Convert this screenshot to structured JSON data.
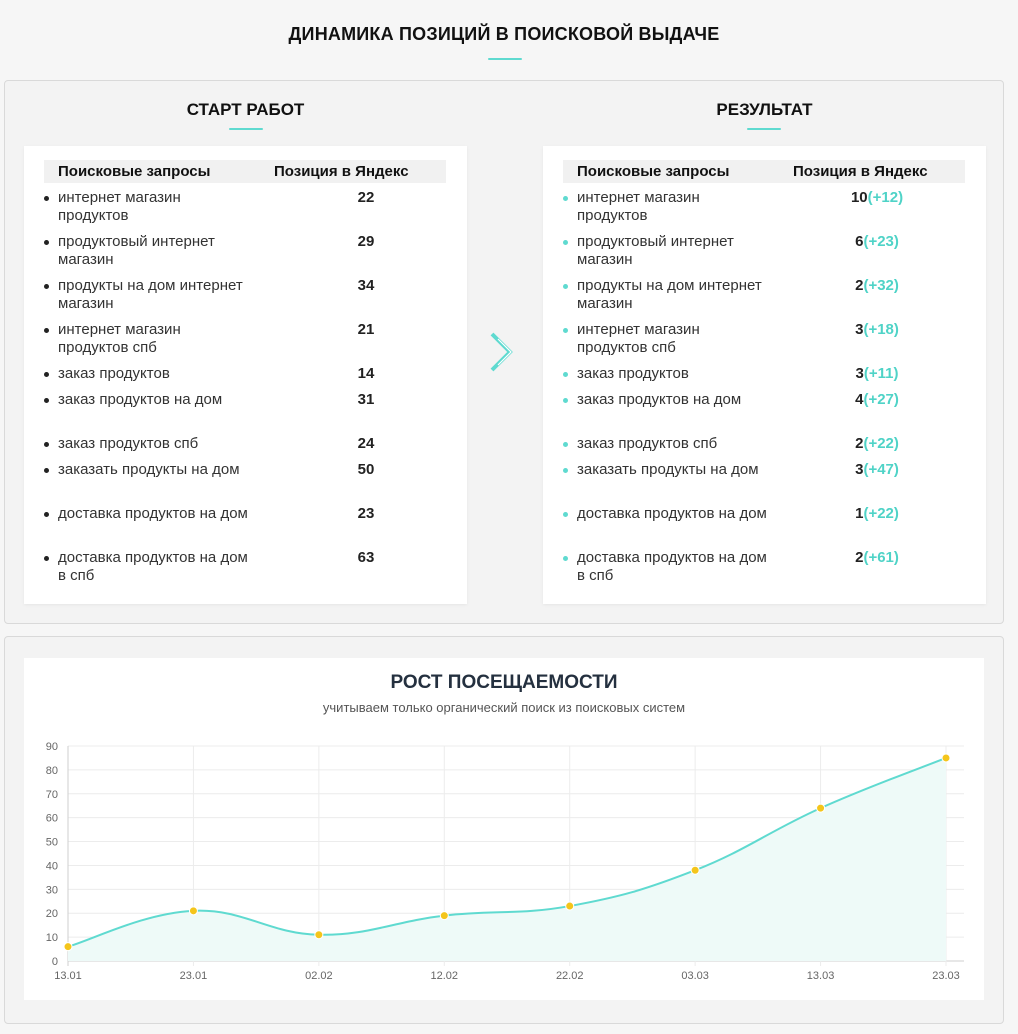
{
  "main_title": "ДИНАМИКА ПОЗИЦИЙ В ПОИСКОВОЙ ВЫДАЧЕ",
  "colors": {
    "accent": "#5fdad0",
    "point": "#f4c51b",
    "fill": "#eefaf8"
  },
  "start": {
    "title": "СТАРТ РАБОТ",
    "col_query": "Поисковые запросы",
    "col_pos": "Позиция в Яндекс",
    "rows": [
      {
        "q": "интернет магазин продуктов",
        "p": "22"
      },
      {
        "q": "продуктовый интернет магазин",
        "p": "29"
      },
      {
        "q": "продукты на дом интернет магазин",
        "p": "34"
      },
      {
        "q": "интернет магазин продуктов спб",
        "p": "21"
      },
      {
        "q": "заказ продуктов",
        "p": "14"
      },
      {
        "q": "заказ продуктов на дом",
        "p": "31"
      },
      {
        "q": "заказ продуктов спб",
        "p": "24"
      },
      {
        "q": "заказать продукты на дом",
        "p": "50"
      },
      {
        "q": "доставка продуктов на дом",
        "p": "23"
      },
      {
        "q": "доставка продуктов на дом в спб",
        "p": "63"
      }
    ]
  },
  "result": {
    "title": "РЕЗУЛЬТАТ",
    "col_query": "Поисковые запросы",
    "col_pos": "Позиция в Яндекс",
    "rows": [
      {
        "q": "интернет магазин продуктов",
        "p": "10",
        "d": "(+12)"
      },
      {
        "q": "продуктовый интернет магазин",
        "p": "6",
        "d": "(+23)"
      },
      {
        "q": "продукты на дом интернет магазин",
        "p": "2",
        "d": "(+32)"
      },
      {
        "q": "интернет магазин продуктов спб",
        "p": "3",
        "d": "(+18)"
      },
      {
        "q": "заказ продуктов",
        "p": "3",
        "d": "(+11)"
      },
      {
        "q": "заказ продуктов на дом",
        "p": "4",
        "d": "(+27)"
      },
      {
        "q": "заказ продуктов спб",
        "p": "2",
        "d": "(+22)"
      },
      {
        "q": "заказать продукты на дом",
        "p": "3",
        "d": "(+47)"
      },
      {
        "q": "доставка продуктов на дом",
        "p": "1",
        "d": "(+22)"
      },
      {
        "q": "доставка продуктов на дом в спб",
        "p": "2",
        "d": "(+61)"
      }
    ]
  },
  "arrow_icon": "chevron-right-icon",
  "chart_data": {
    "type": "area",
    "title": "РОСТ ПОСЕЩАЕМОСТИ",
    "subtitle": "учитываем только органический поиск из поисковых систем",
    "xlabel": "",
    "ylabel": "",
    "categories": [
      "13.01",
      "23.01",
      "02.02",
      "12.02",
      "22.02",
      "03.03",
      "13.03",
      "23.03"
    ],
    "values": [
      6,
      21,
      11,
      19,
      23,
      38,
      64,
      85
    ],
    "ylim": [
      0,
      90
    ],
    "yticks": [
      0,
      10,
      20,
      30,
      40,
      50,
      60,
      70,
      80,
      90
    ],
    "grid": true,
    "legend": "none"
  }
}
